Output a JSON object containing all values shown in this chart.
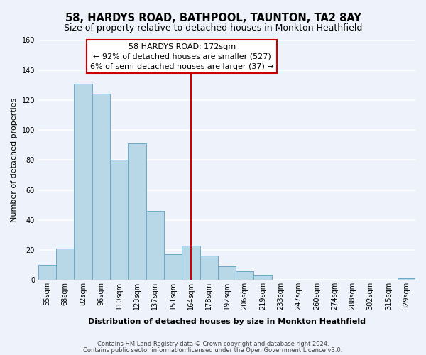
{
  "title": "58, HARDYS ROAD, BATHPOOL, TAUNTON, TA2 8AY",
  "subtitle": "Size of property relative to detached houses in Monkton Heathfield",
  "xlabel": "Distribution of detached houses by size in Monkton Heathfield",
  "ylabel": "Number of detached properties",
  "bar_color": "#b8d8e8",
  "bar_edge_color": "#6aaac8",
  "bin_labels": [
    "55sqm",
    "68sqm",
    "82sqm",
    "96sqm",
    "110sqm",
    "123sqm",
    "137sqm",
    "151sqm",
    "164sqm",
    "178sqm",
    "192sqm",
    "206sqm",
    "219sqm",
    "233sqm",
    "247sqm",
    "260sqm",
    "274sqm",
    "288sqm",
    "302sqm",
    "315sqm",
    "329sqm"
  ],
  "bar_heights": [
    10,
    21,
    131,
    124,
    80,
    91,
    46,
    17,
    23,
    16,
    9,
    6,
    3,
    0,
    0,
    0,
    0,
    0,
    0,
    0,
    1
  ],
  "vline_index": 8,
  "vline_color": "#cc0000",
  "annotation_text": "58 HARDYS ROAD: 172sqm\n← 92% of detached houses are smaller (527)\n6% of semi-detached houses are larger (37) →",
  "annotation_box_facecolor": "#ffffff",
  "annotation_box_edgecolor": "#cc0000",
  "ylim": [
    0,
    160
  ],
  "yticks": [
    0,
    20,
    40,
    60,
    80,
    100,
    120,
    140,
    160
  ],
  "footer1": "Contains HM Land Registry data © Crown copyright and database right 2024.",
  "footer2": "Contains public sector information licensed under the Open Government Licence v3.0.",
  "background_color": "#eef2fb",
  "grid_color": "#ffffff",
  "title_fontsize": 10.5,
  "subtitle_fontsize": 9,
  "axis_label_fontsize": 8,
  "tick_fontsize": 7,
  "annotation_fontsize": 8,
  "footer_fontsize": 6
}
